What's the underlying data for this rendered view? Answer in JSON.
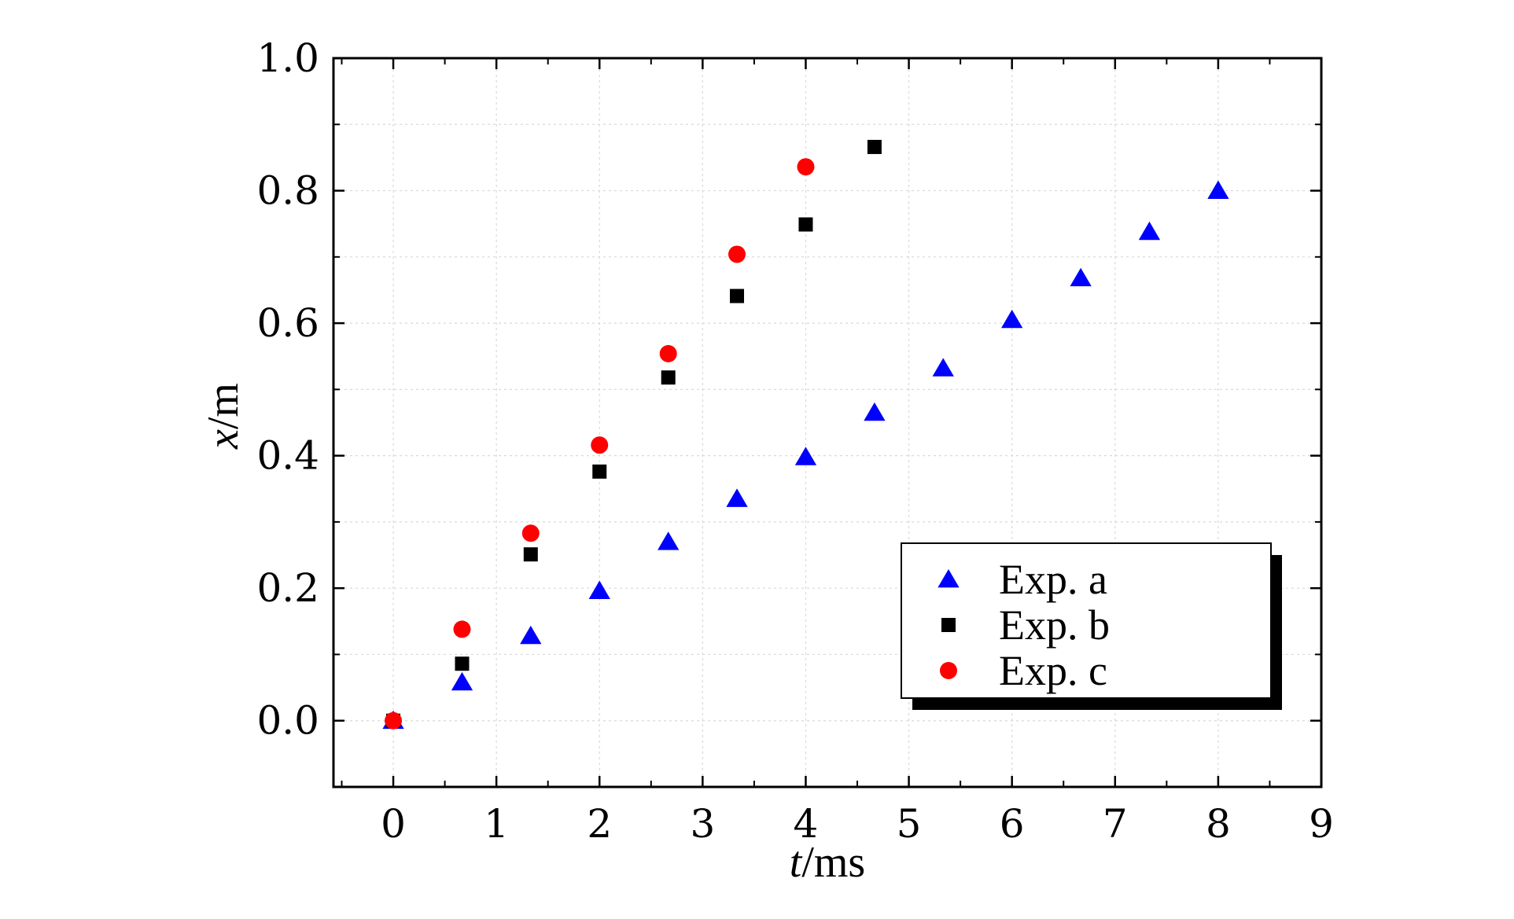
{
  "chart_data": {
    "type": "scatter",
    "title": "",
    "xlabel": {
      "var": "t",
      "unit": "/ms"
    },
    "ylabel": {
      "var": "x",
      "unit": "/m"
    },
    "xlim": [
      -0.58,
      9
    ],
    "ylim": [
      -0.1,
      1.0
    ],
    "x_ticks": [
      0,
      1,
      2,
      3,
      4,
      5,
      6,
      7,
      8,
      9
    ],
    "x_tick_labels": [
      "0",
      "1",
      "2",
      "3",
      "4",
      "5",
      "6",
      "7",
      "8",
      "9"
    ],
    "y_ticks": [
      0.0,
      0.2,
      0.4,
      0.6,
      0.8,
      1.0
    ],
    "y_tick_labels": [
      "0.0",
      "0.2",
      "0.4",
      "0.6",
      "0.8",
      "1.0"
    ],
    "grid": true,
    "legend_position": "lower-right",
    "series": [
      {
        "name": "Exp. a",
        "marker": "triangle",
        "color": "#0000ff",
        "x": [
          0,
          0.667,
          1.333,
          2.0,
          2.667,
          3.333,
          4.0,
          4.667,
          5.333,
          6.0,
          6.667,
          7.333,
          8.0
        ],
        "y": [
          0.0,
          0.058,
          0.128,
          0.196,
          0.27,
          0.335,
          0.398,
          0.465,
          0.532,
          0.605,
          0.668,
          0.738,
          0.8
        ]
      },
      {
        "name": "Exp. b",
        "marker": "square",
        "color": "#000000",
        "x": [
          0,
          0.667,
          1.333,
          2.0,
          2.667,
          3.333,
          4.0,
          4.667
        ],
        "y": [
          0.0,
          0.086,
          0.251,
          0.376,
          0.518,
          0.641,
          0.749,
          0.866
        ]
      },
      {
        "name": "Exp. c",
        "marker": "circle",
        "color": "#ff0000",
        "x": [
          0,
          0.667,
          1.333,
          2.0,
          2.667,
          3.333,
          4.0
        ],
        "y": [
          0.0,
          0.138,
          0.283,
          0.416,
          0.554,
          0.704,
          0.836
        ]
      }
    ]
  }
}
